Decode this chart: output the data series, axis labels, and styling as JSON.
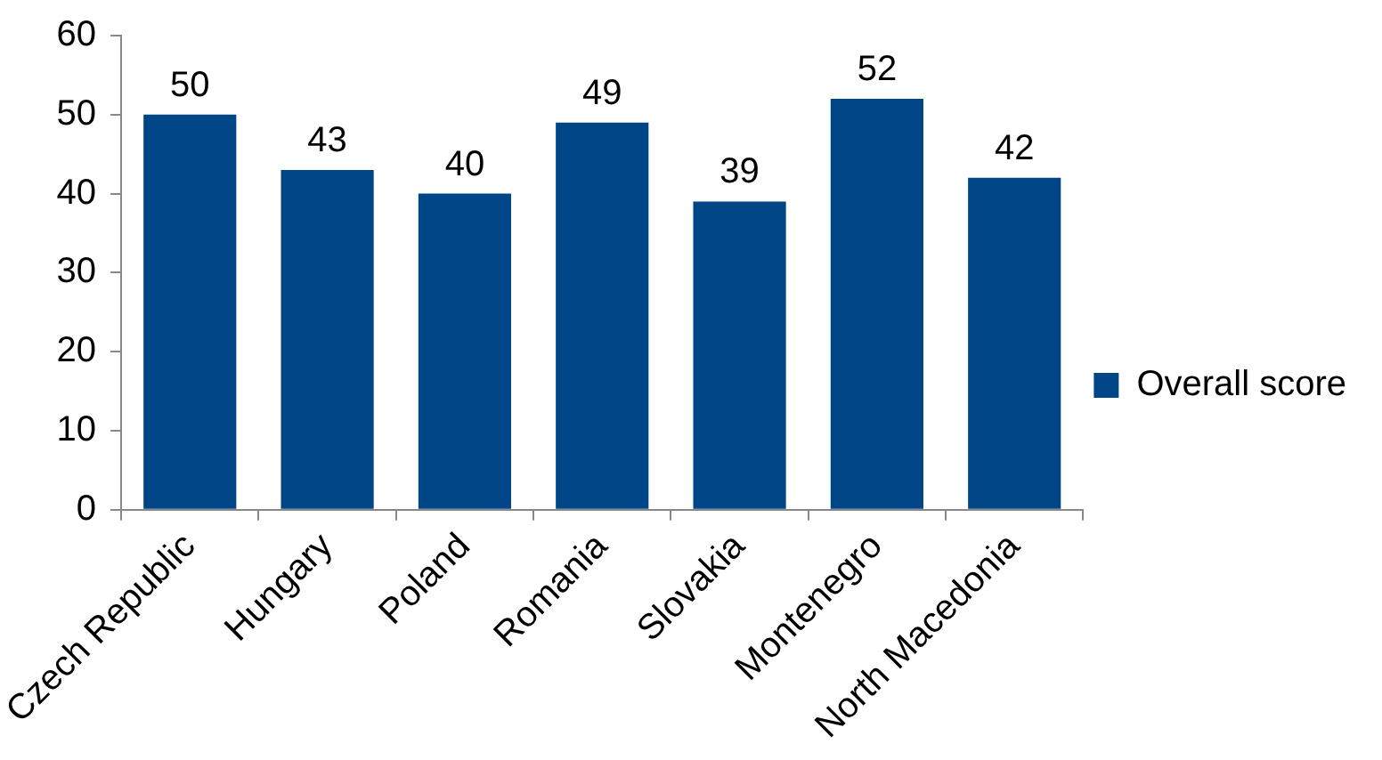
{
  "chart_data": {
    "type": "bar",
    "categories": [
      "Czech Republic",
      "Hungary",
      "Poland",
      "Romania",
      "Slovakia",
      "Montenegro",
      "North Macedonia"
    ],
    "series": [
      {
        "name": "Overall score",
        "color": "#004586",
        "values": [
          50,
          43,
          40,
          49,
          39,
          52,
          42
        ]
      }
    ],
    "ylim": [
      0,
      60
    ],
    "yticks": [
      0,
      10,
      20,
      30,
      40,
      50,
      60
    ],
    "grid": false,
    "legend": "right",
    "data_labels": true
  }
}
